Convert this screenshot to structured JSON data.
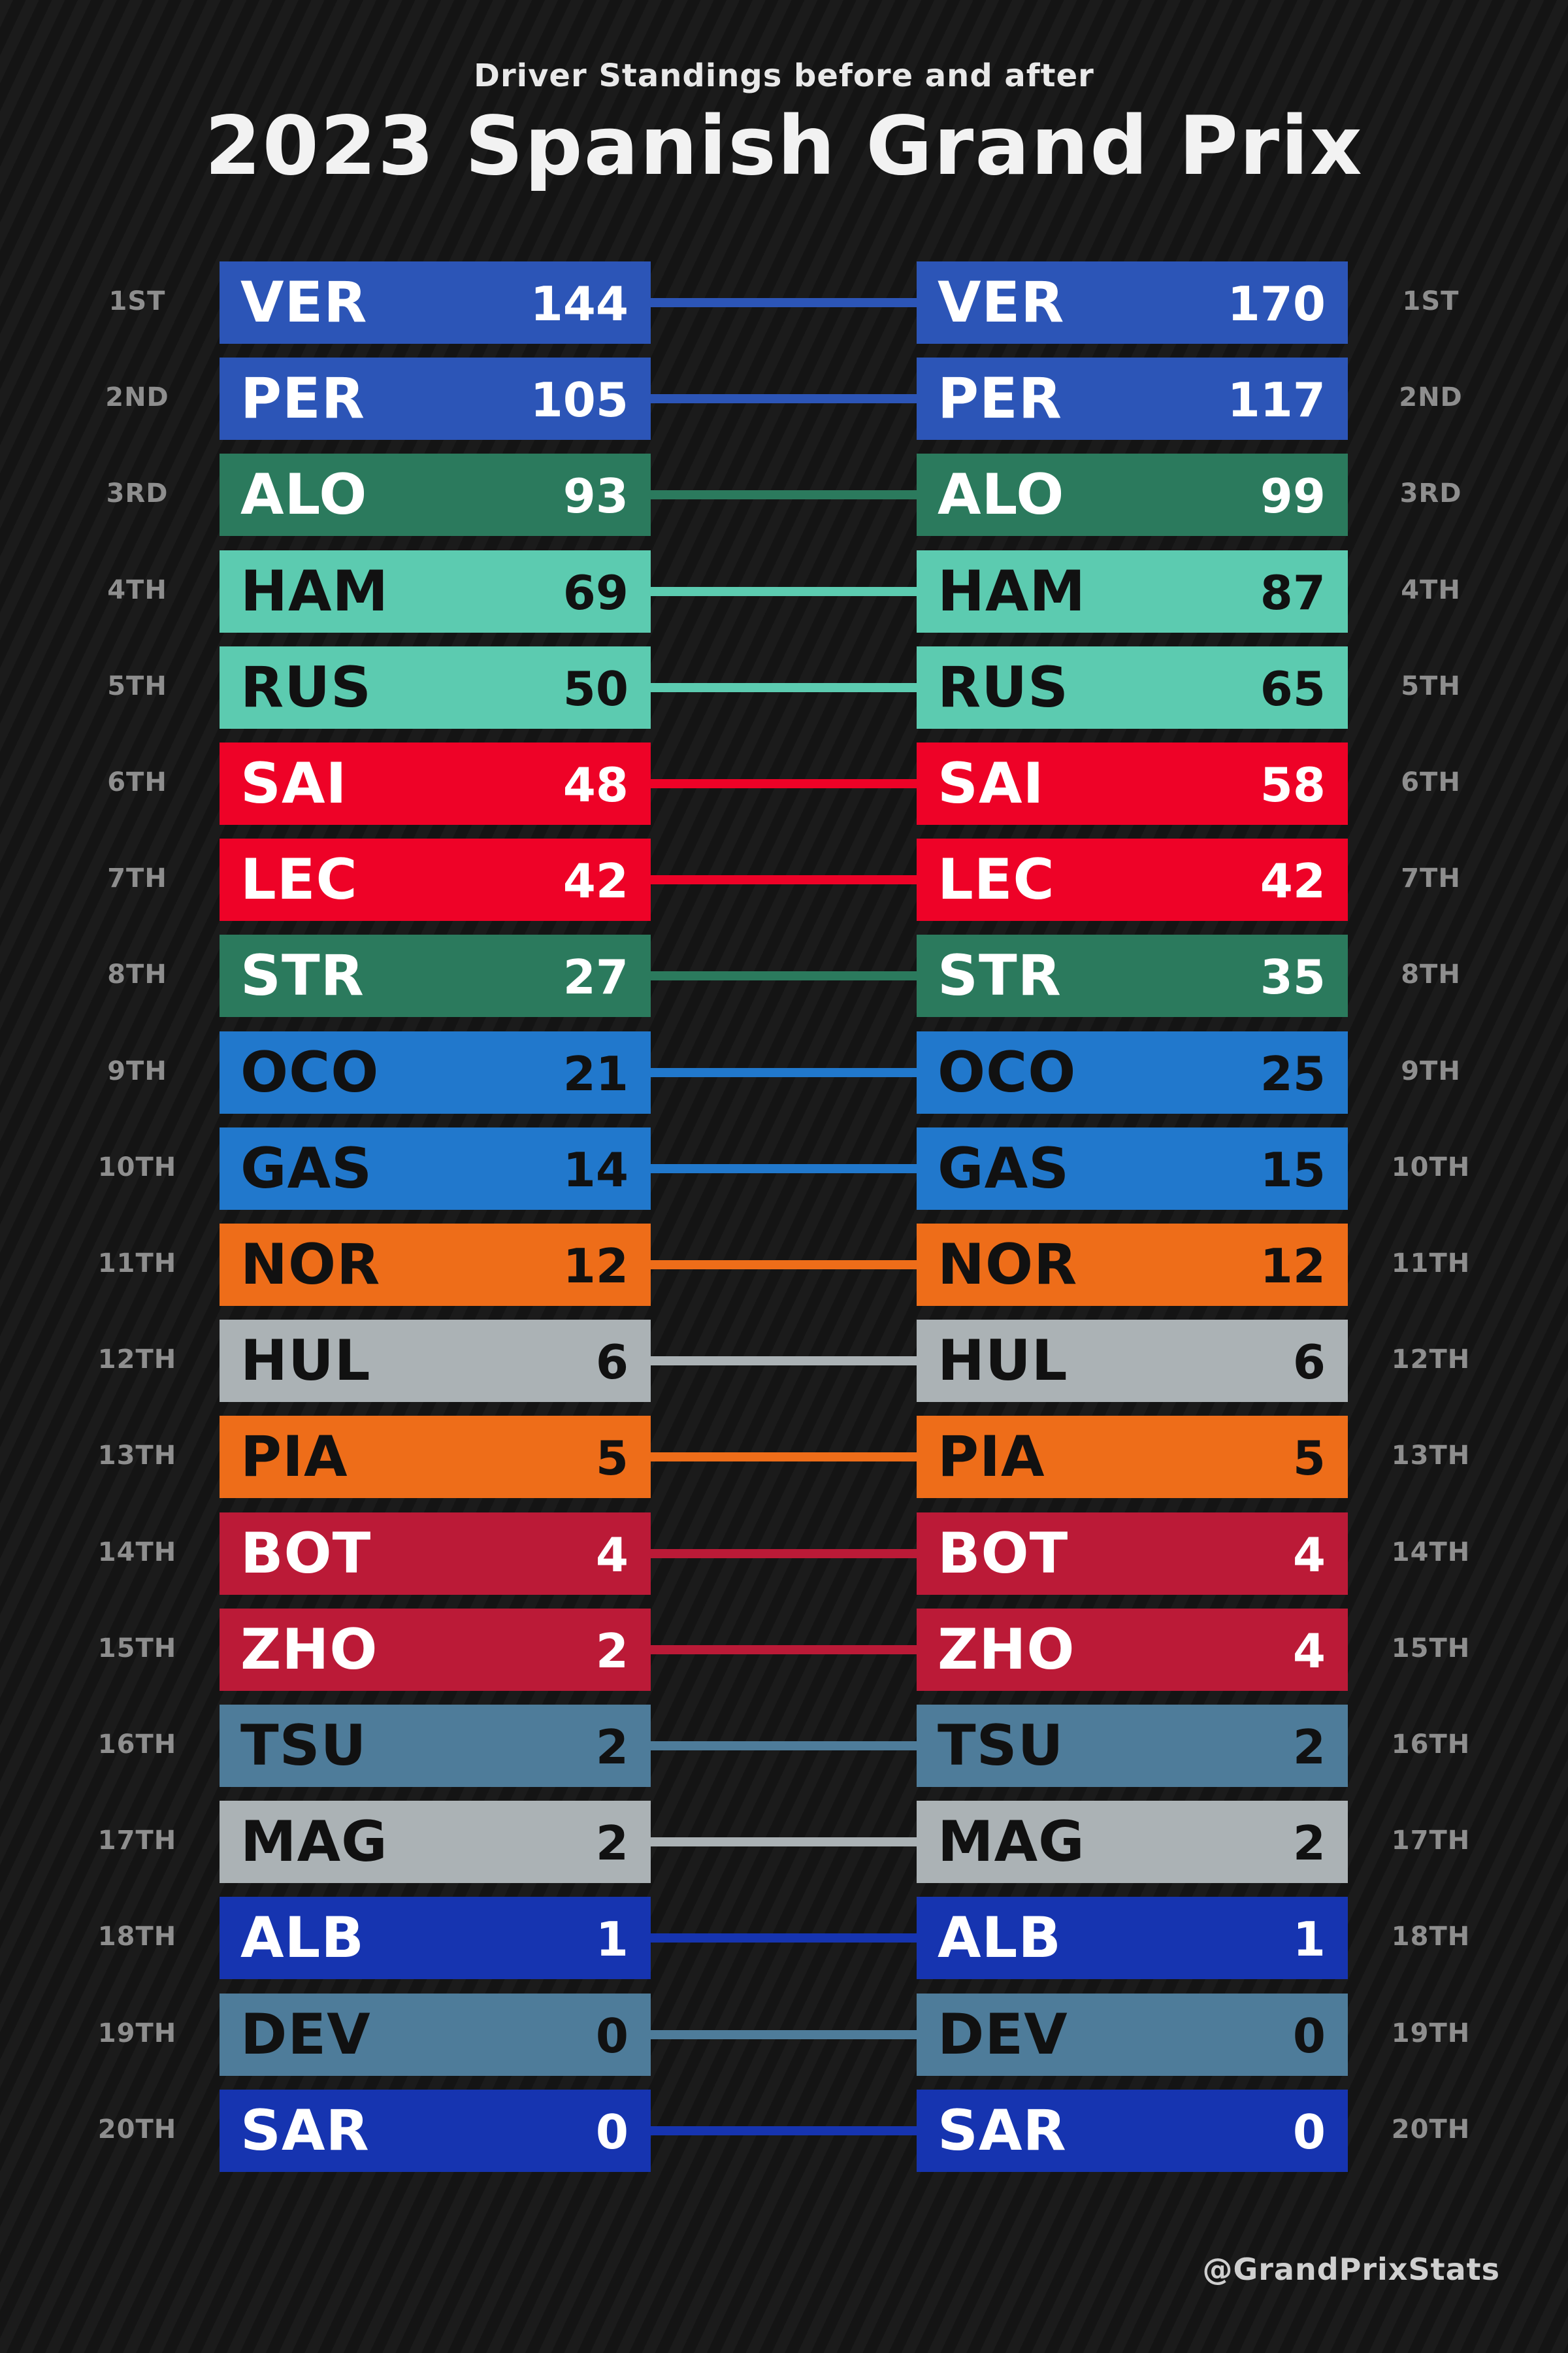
{
  "header": {
    "subtitle": "Driver Standings before and after",
    "title": "2023 Spanish Grand Prix"
  },
  "footer": {
    "credit": "@GrandPrixStats"
  },
  "chart_data": {
    "type": "table",
    "position_labels": [
      "1ST",
      "2ND",
      "3RD",
      "4TH",
      "5TH",
      "6TH",
      "7TH",
      "8TH",
      "9TH",
      "10TH",
      "11TH",
      "12TH",
      "13TH",
      "14TH",
      "15TH",
      "16TH",
      "17TH",
      "18TH",
      "19TH",
      "20TH"
    ],
    "before": [
      {
        "driver": "VER",
        "points": 144,
        "color": "#2c55b7",
        "text_color": "#ffffff"
      },
      {
        "driver": "PER",
        "points": 105,
        "color": "#2c55b7",
        "text_color": "#ffffff"
      },
      {
        "driver": "ALO",
        "points": 93,
        "color": "#2b7a5d",
        "text_color": "#ffffff"
      },
      {
        "driver": "HAM",
        "points": 69,
        "color": "#5ccbb0",
        "text_color": "#111111"
      },
      {
        "driver": "RUS",
        "points": 50,
        "color": "#5ccbb0",
        "text_color": "#111111"
      },
      {
        "driver": "SAI",
        "points": 48,
        "color": "#ee0227",
        "text_color": "#ffffff"
      },
      {
        "driver": "LEC",
        "points": 42,
        "color": "#ee0227",
        "text_color": "#ffffff"
      },
      {
        "driver": "STR",
        "points": 27,
        "color": "#2b7a5d",
        "text_color": "#ffffff"
      },
      {
        "driver": "OCO",
        "points": 21,
        "color": "#2178cc",
        "text_color": "#111111"
      },
      {
        "driver": "GAS",
        "points": 14,
        "color": "#2178cc",
        "text_color": "#111111"
      },
      {
        "driver": "NOR",
        "points": 12,
        "color": "#ee6d19",
        "text_color": "#111111"
      },
      {
        "driver": "HUL",
        "points": 6,
        "color": "#abb2b5",
        "text_color": "#111111"
      },
      {
        "driver": "PIA",
        "points": 5,
        "color": "#ee6d19",
        "text_color": "#111111"
      },
      {
        "driver": "BOT",
        "points": 4,
        "color": "#bb1a37",
        "text_color": "#ffffff"
      },
      {
        "driver": "ZHO",
        "points": 2,
        "color": "#bb1a37",
        "text_color": "#ffffff"
      },
      {
        "driver": "TSU",
        "points": 2,
        "color": "#4e7c9a",
        "text_color": "#111111"
      },
      {
        "driver": "MAG",
        "points": 2,
        "color": "#abb2b5",
        "text_color": "#111111"
      },
      {
        "driver": "ALB",
        "points": 1,
        "color": "#1634b0",
        "text_color": "#ffffff"
      },
      {
        "driver": "DEV",
        "points": 0,
        "color": "#4e7c9a",
        "text_color": "#111111"
      },
      {
        "driver": "SAR",
        "points": 0,
        "color": "#1634b0",
        "text_color": "#ffffff"
      }
    ],
    "after": [
      {
        "driver": "VER",
        "points": 170,
        "color": "#2c55b7",
        "text_color": "#ffffff"
      },
      {
        "driver": "PER",
        "points": 117,
        "color": "#2c55b7",
        "text_color": "#ffffff"
      },
      {
        "driver": "ALO",
        "points": 99,
        "color": "#2b7a5d",
        "text_color": "#ffffff"
      },
      {
        "driver": "HAM",
        "points": 87,
        "color": "#5ccbb0",
        "text_color": "#111111"
      },
      {
        "driver": "RUS",
        "points": 65,
        "color": "#5ccbb0",
        "text_color": "#111111"
      },
      {
        "driver": "SAI",
        "points": 58,
        "color": "#ee0227",
        "text_color": "#ffffff"
      },
      {
        "driver": "LEC",
        "points": 42,
        "color": "#ee0227",
        "text_color": "#ffffff"
      },
      {
        "driver": "STR",
        "points": 35,
        "color": "#2b7a5d",
        "text_color": "#ffffff"
      },
      {
        "driver": "OCO",
        "points": 25,
        "color": "#2178cc",
        "text_color": "#111111"
      },
      {
        "driver": "GAS",
        "points": 15,
        "color": "#2178cc",
        "text_color": "#111111"
      },
      {
        "driver": "NOR",
        "points": 12,
        "color": "#ee6d19",
        "text_color": "#111111"
      },
      {
        "driver": "HUL",
        "points": 6,
        "color": "#abb2b5",
        "text_color": "#111111"
      },
      {
        "driver": "PIA",
        "points": 5,
        "color": "#ee6d19",
        "text_color": "#111111"
      },
      {
        "driver": "BOT",
        "points": 4,
        "color": "#bb1a37",
        "text_color": "#ffffff"
      },
      {
        "driver": "ZHO",
        "points": 4,
        "color": "#bb1a37",
        "text_color": "#ffffff"
      },
      {
        "driver": "TSU",
        "points": 2,
        "color": "#4e7c9a",
        "text_color": "#111111"
      },
      {
        "driver": "MAG",
        "points": 2,
        "color": "#abb2b5",
        "text_color": "#111111"
      },
      {
        "driver": "ALB",
        "points": 1,
        "color": "#1634b0",
        "text_color": "#ffffff"
      },
      {
        "driver": "DEV",
        "points": 0,
        "color": "#4e7c9a",
        "text_color": "#111111"
      },
      {
        "driver": "SAR",
        "points": 0,
        "color": "#1634b0",
        "text_color": "#ffffff"
      }
    ]
  }
}
